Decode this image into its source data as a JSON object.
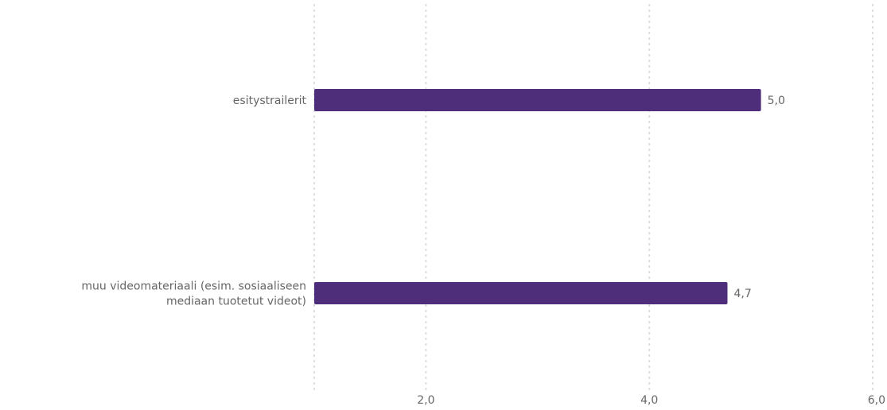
{
  "chart_data": {
    "type": "bar",
    "orientation": "horizontal",
    "categories": [
      [
        "esitystrailerit"
      ],
      [
        "muu videomateriaali (esim. sosiaaliseen",
        "mediaan tuotetut videot)"
      ]
    ],
    "values": [
      5.0,
      4.7
    ],
    "value_labels": [
      "5,0",
      "4,7"
    ],
    "xlim": [
      1,
      6
    ],
    "xticks": [
      2,
      4,
      6
    ],
    "xtick_labels": [
      "2,0",
      "4,0",
      "6,0"
    ],
    "grid": "vertical-dotted",
    "legend": "none",
    "colors": {
      "bar": "#4e2e7b",
      "text": "#666666",
      "grid": "#d9d9d9"
    }
  }
}
